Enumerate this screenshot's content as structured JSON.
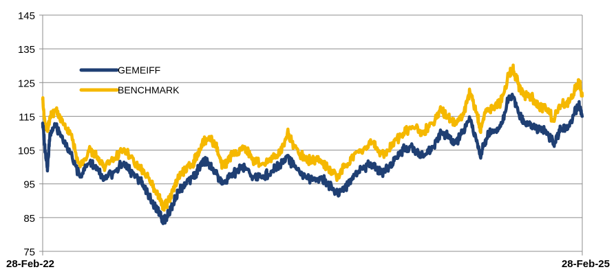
{
  "chart_data": {
    "type": "line",
    "y_ticks": [
      75,
      85,
      95,
      105,
      115,
      125,
      135,
      145
    ],
    "ylim": [
      75,
      145
    ],
    "x_ticks": [
      "28-Feb-22",
      "28-Feb-25"
    ],
    "xlim": [
      "2022-02-28",
      "2025-02-28"
    ],
    "grid": true,
    "legend_position": "top-left",
    "series": [
      {
        "name": "GEMEIFF",
        "color": "#1f3f73",
        "points": [
          [
            "2022-02-28",
            113
          ],
          [
            "2022-03-05",
            105
          ],
          [
            "2022-03-10",
            100
          ],
          [
            "2022-03-15",
            110
          ],
          [
            "2022-03-25",
            112
          ],
          [
            "2022-04-10",
            108
          ],
          [
            "2022-04-25",
            104
          ],
          [
            "2022-05-15",
            97
          ],
          [
            "2022-06-05",
            102
          ],
          [
            "2022-06-20",
            99
          ],
          [
            "2022-07-01",
            96
          ],
          [
            "2022-07-20",
            98
          ],
          [
            "2022-08-10",
            101
          ],
          [
            "2022-08-25",
            99
          ],
          [
            "2022-09-15",
            96
          ],
          [
            "2022-09-30",
            92
          ],
          [
            "2022-10-15",
            88
          ],
          [
            "2022-10-25",
            86
          ],
          [
            "2022-11-01",
            84
          ],
          [
            "2022-11-10",
            86
          ],
          [
            "2022-11-20",
            89
          ],
          [
            "2022-12-01",
            93
          ],
          [
            "2022-12-15",
            95
          ],
          [
            "2022-12-30",
            97
          ],
          [
            "2023-01-10",
            99
          ],
          [
            "2023-01-20",
            102
          ],
          [
            "2023-02-01",
            101
          ],
          [
            "2023-02-15",
            98
          ],
          [
            "2023-03-01",
            95
          ],
          [
            "2023-03-15",
            97
          ],
          [
            "2023-04-01",
            99
          ],
          [
            "2023-04-15",
            100
          ],
          [
            "2023-05-01",
            97
          ],
          [
            "2023-05-20",
            97
          ],
          [
            "2023-06-10",
            99
          ],
          [
            "2023-06-25",
            101
          ],
          [
            "2023-07-10",
            103
          ],
          [
            "2023-07-25",
            100
          ],
          [
            "2023-08-15",
            97
          ],
          [
            "2023-08-30",
            96
          ],
          [
            "2023-09-15",
            97
          ],
          [
            "2023-09-30",
            95
          ],
          [
            "2023-10-20",
            92
          ],
          [
            "2023-11-10",
            95
          ],
          [
            "2023-11-25",
            98
          ],
          [
            "2023-12-15",
            100
          ],
          [
            "2024-01-01",
            101
          ],
          [
            "2024-01-15",
            98
          ],
          [
            "2024-02-01",
            100
          ],
          [
            "2024-02-15",
            103
          ],
          [
            "2024-03-01",
            105
          ],
          [
            "2024-03-20",
            106
          ],
          [
            "2024-04-10",
            103
          ],
          [
            "2024-04-30",
            106
          ],
          [
            "2024-05-15",
            110
          ],
          [
            "2024-05-30",
            109
          ],
          [
            "2024-06-15",
            107
          ],
          [
            "2024-06-30",
            110
          ],
          [
            "2024-07-15",
            114
          ],
          [
            "2024-07-30",
            107
          ],
          [
            "2024-08-05",
            103
          ],
          [
            "2024-08-15",
            108
          ],
          [
            "2024-08-30",
            111
          ],
          [
            "2024-09-15",
            112
          ],
          [
            "2024-10-01",
            120
          ],
          [
            "2024-10-10",
            121
          ],
          [
            "2024-10-20",
            117
          ],
          [
            "2024-11-01",
            113
          ],
          [
            "2024-11-15",
            113
          ],
          [
            "2024-12-01",
            111
          ],
          [
            "2024-12-15",
            111
          ],
          [
            "2025-01-01",
            107
          ],
          [
            "2025-01-15",
            111
          ],
          [
            "2025-02-01",
            112
          ],
          [
            "2025-02-15",
            117
          ],
          [
            "2025-02-22",
            118
          ],
          [
            "2025-02-28",
            115
          ]
        ]
      },
      {
        "name": "BENCHMARK",
        "color": "#f5b800",
        "points": [
          [
            "2022-02-28",
            120
          ],
          [
            "2022-03-05",
            112
          ],
          [
            "2022-03-10",
            111
          ],
          [
            "2022-03-15",
            115
          ],
          [
            "2022-03-25",
            117
          ],
          [
            "2022-04-10",
            113
          ],
          [
            "2022-04-25",
            110
          ],
          [
            "2022-05-15",
            100
          ],
          [
            "2022-06-05",
            105
          ],
          [
            "2022-06-20",
            103
          ],
          [
            "2022-07-01",
            100
          ],
          [
            "2022-07-20",
            102
          ],
          [
            "2022-08-10",
            105
          ],
          [
            "2022-08-25",
            103
          ],
          [
            "2022-09-15",
            99
          ],
          [
            "2022-09-30",
            97
          ],
          [
            "2022-10-15",
            93
          ],
          [
            "2022-10-25",
            90
          ],
          [
            "2022-11-01",
            88
          ],
          [
            "2022-11-10",
            90
          ],
          [
            "2022-11-20",
            93
          ],
          [
            "2022-12-01",
            97
          ],
          [
            "2022-12-15",
            99
          ],
          [
            "2022-12-30",
            101
          ],
          [
            "2023-01-10",
            104
          ],
          [
            "2023-01-20",
            108
          ],
          [
            "2023-02-01",
            109
          ],
          [
            "2023-02-15",
            106
          ],
          [
            "2023-03-01",
            100
          ],
          [
            "2023-03-15",
            103
          ],
          [
            "2023-04-01",
            104
          ],
          [
            "2023-04-15",
            106
          ],
          [
            "2023-05-01",
            102
          ],
          [
            "2023-05-20",
            101
          ],
          [
            "2023-06-10",
            103
          ],
          [
            "2023-06-25",
            104
          ],
          [
            "2023-07-10",
            110
          ],
          [
            "2023-07-25",
            106
          ],
          [
            "2023-08-15",
            102
          ],
          [
            "2023-08-30",
            102
          ],
          [
            "2023-09-15",
            102
          ],
          [
            "2023-09-30",
            100
          ],
          [
            "2023-10-20",
            97
          ],
          [
            "2023-11-10",
            101
          ],
          [
            "2023-11-25",
            104
          ],
          [
            "2023-12-15",
            106
          ],
          [
            "2024-01-01",
            107
          ],
          [
            "2024-01-15",
            104
          ],
          [
            "2024-02-01",
            105
          ],
          [
            "2024-02-15",
            108
          ],
          [
            "2024-03-01",
            110
          ],
          [
            "2024-03-20",
            112
          ],
          [
            "2024-04-10",
            110
          ],
          [
            "2024-04-30",
            113
          ],
          [
            "2024-05-15",
            117
          ],
          [
            "2024-05-30",
            115
          ],
          [
            "2024-06-15",
            113
          ],
          [
            "2024-06-30",
            115
          ],
          [
            "2024-07-15",
            122
          ],
          [
            "2024-07-30",
            115
          ],
          [
            "2024-08-05",
            111
          ],
          [
            "2024-08-15",
            116
          ],
          [
            "2024-08-30",
            118
          ],
          [
            "2024-09-15",
            119
          ],
          [
            "2024-10-01",
            127
          ],
          [
            "2024-10-10",
            129
          ],
          [
            "2024-10-20",
            125
          ],
          [
            "2024-11-01",
            121
          ],
          [
            "2024-11-15",
            121
          ],
          [
            "2024-12-01",
            118
          ],
          [
            "2024-12-15",
            118
          ],
          [
            "2025-01-01",
            114
          ],
          [
            "2025-01-15",
            118
          ],
          [
            "2025-02-01",
            119
          ],
          [
            "2025-02-15",
            124
          ],
          [
            "2025-02-22",
            125
          ],
          [
            "2025-02-28",
            121
          ]
        ]
      }
    ]
  }
}
